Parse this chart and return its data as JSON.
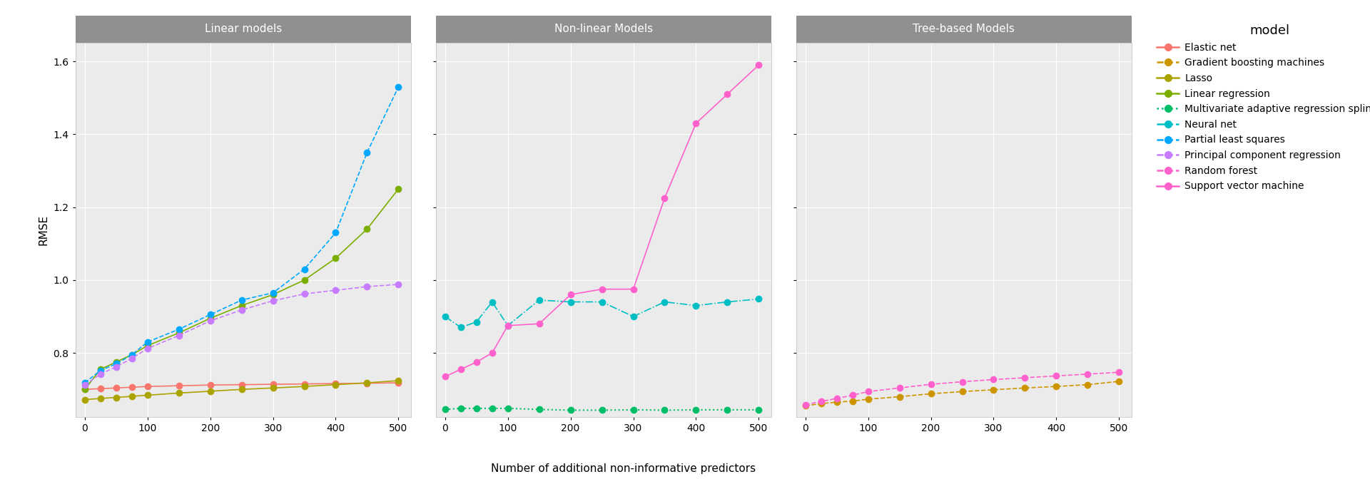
{
  "x_values": [
    0,
    25,
    50,
    75,
    100,
    150,
    200,
    250,
    300,
    350,
    400,
    450,
    500
  ],
  "panels": {
    "Linear models": {
      "Elastic net": [
        0.7,
        0.702,
        0.704,
        0.706,
        0.708,
        0.71,
        0.712,
        0.713,
        0.714,
        0.715,
        0.716,
        0.717,
        0.718
      ],
      "Lasso": [
        0.672,
        0.675,
        0.678,
        0.681,
        0.684,
        0.69,
        0.695,
        0.7,
        0.704,
        0.708,
        0.713,
        0.718,
        0.724
      ],
      "Linear regression": [
        0.7,
        0.755,
        0.775,
        0.795,
        0.82,
        0.855,
        0.895,
        0.93,
        0.96,
        1.0,
        1.06,
        1.14,
        1.25
      ],
      "Partial least squares": [
        0.718,
        0.752,
        0.77,
        0.795,
        0.83,
        0.865,
        0.905,
        0.945,
        0.965,
        1.03,
        1.13,
        1.35,
        1.53
      ],
      "Principal component regression": [
        0.712,
        0.742,
        0.762,
        0.785,
        0.812,
        0.848,
        0.888,
        0.918,
        0.943,
        0.962,
        0.972,
        0.982,
        0.988
      ]
    },
    "Non-linear Models": {
      "Multivariate adaptive regression splines": [
        0.645,
        0.648,
        0.648,
        0.648,
        0.648,
        0.645,
        0.643,
        0.643,
        0.644,
        0.643,
        0.644,
        0.644,
        0.644
      ],
      "Neural net": [
        0.9,
        0.87,
        0.885,
        0.94,
        0.875,
        0.945,
        0.94,
        0.94,
        0.9,
        0.94,
        0.93,
        0.94,
        0.948
      ],
      "Support vector machine": [
        0.735,
        0.755,
        0.775,
        0.8,
        0.875,
        0.88,
        0.96,
        0.975,
        0.975,
        1.225,
        1.43,
        1.51,
        1.59
      ]
    },
    "Tree-based Models": {
      "Gradient boosting machines": [
        0.655,
        0.661,
        0.665,
        0.668,
        0.673,
        0.68,
        0.688,
        0.694,
        0.699,
        0.704,
        0.708,
        0.713,
        0.722
      ],
      "Random forest": [
        0.658,
        0.667,
        0.675,
        0.684,
        0.694,
        0.704,
        0.714,
        0.721,
        0.727,
        0.732,
        0.737,
        0.742,
        0.747
      ]
    }
  },
  "line_styles": {
    "Elastic net": {
      "color": "#F8766D",
      "linestyle": "-",
      "marker": "o",
      "lw": 1.2
    },
    "Gradient boosting machines": {
      "color": "#CD9600",
      "linestyle": "--",
      "marker": "o",
      "lw": 1.2
    },
    "Lasso": {
      "color": "#ABA300",
      "linestyle": "-",
      "marker": "o",
      "lw": 1.2
    },
    "Linear regression": {
      "color": "#7CAE00",
      "linestyle": "-",
      "marker": "o",
      "lw": 1.2
    },
    "Multivariate adaptive regression splines": {
      "color": "#00BE67",
      "linestyle": ":",
      "marker": "o",
      "lw": 1.5
    },
    "Neural net": {
      "color": "#00BFC4",
      "linestyle": "-.",
      "marker": "o",
      "lw": 1.2
    },
    "Partial least squares": {
      "color": "#00A9FF",
      "linestyle": "--",
      "marker": "o",
      "lw": 1.2
    },
    "Principal component regression": {
      "color": "#C77CFF",
      "linestyle": "--",
      "marker": "o",
      "lw": 1.2
    },
    "Random forest": {
      "color": "#FF61CC",
      "linestyle": "--",
      "marker": "o",
      "lw": 1.2
    },
    "Support vector machine": {
      "color": "#FF61CC",
      "linestyle": "-",
      "marker": "o",
      "lw": 1.2
    }
  },
  "ylim": [
    0.625,
    1.65
  ],
  "yticks": [
    0.8,
    1.0,
    1.2,
    1.4,
    1.6
  ],
  "xlabel": "Number of additional non-informative predictors",
  "ylabel": "RMSE",
  "panel_title_bg": "#909090",
  "panel_bg": "#EBEBEB",
  "grid_color": "#FFFFFF",
  "background_color": "#FFFFFF",
  "title_fontsize": 11,
  "axis_fontsize": 11,
  "tick_fontsize": 10,
  "legend_title": "model",
  "legend_fontsize": 10,
  "all_models_legend": [
    "Elastic net",
    "Gradient boosting machines",
    "Lasso",
    "Linear regression",
    "Multivariate adaptive regression splines",
    "Neural net",
    "Partial least squares",
    "Principal component regression",
    "Random forest",
    "Support vector machine"
  ]
}
